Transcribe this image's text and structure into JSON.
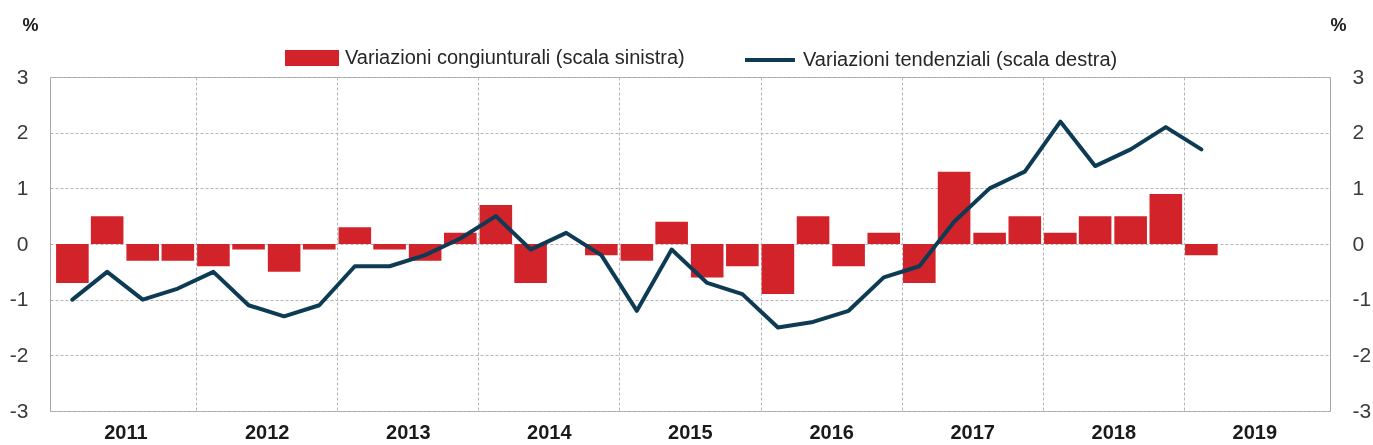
{
  "chart_data": {
    "type": "bar",
    "ylabel": "%",
    "y2label": "%",
    "x": [
      "2011-02-15",
      "2011-05-16",
      "2011-08-16",
      "2011-11-15",
      "2012-02-15",
      "2012-05-16",
      "2012-08-16",
      "2012-11-15",
      "2013-02-15",
      "2013-05-16",
      "2013-08-16",
      "2013-11-15",
      "2014-02-15",
      "2014-05-16",
      "2014-08-16",
      "2014-11-15",
      "2015-02-15",
      "2015-05-16",
      "2015-08-16",
      "2015-11-15",
      "2016-02-15",
      "2016-05-16",
      "2016-08-16",
      "2016-11-15",
      "2017-02-15",
      "2017-05-16",
      "2017-08-16",
      "2017-11-15",
      "2018-02-15",
      "2018-05-16",
      "2018-08-16",
      "2018-11-15",
      "2019-02-15"
    ],
    "xlim": [
      "2011-01-01",
      "2020-01-01"
    ],
    "xticks": [
      {
        "value": "2011-07-02",
        "label": "2011"
      },
      {
        "value": "2012-01-01",
        "label": null
      },
      {
        "value": "2012-07-02",
        "label": "2012"
      },
      {
        "value": "2013-01-01",
        "label": null
      },
      {
        "value": "2013-07-02",
        "label": "2013"
      },
      {
        "value": "2014-01-01",
        "label": null
      },
      {
        "value": "2014-07-02",
        "label": "2014"
      },
      {
        "value": "2015-01-01",
        "label": null
      },
      {
        "value": "2015-07-02",
        "label": "2015"
      },
      {
        "value": "2016-01-01",
        "label": null
      },
      {
        "value": "2016-07-02",
        "label": "2016"
      },
      {
        "value": "2017-01-01",
        "label": null
      },
      {
        "value": "2017-07-02",
        "label": "2017"
      },
      {
        "value": "2018-01-01",
        "label": null
      },
      {
        "value": "2018-07-02",
        "label": "2018"
      },
      {
        "value": "2019-01-01",
        "label": null
      },
      {
        "value": "2019-07-02",
        "label": "2019"
      }
    ],
    "ylim": [
      -3,
      3
    ],
    "yticks": [
      -3,
      -2,
      -1,
      0,
      1,
      2,
      3
    ],
    "y2lim": [
      -3,
      3
    ],
    "y2ticks": [
      -3,
      -2,
      -1,
      0,
      1,
      2,
      3
    ],
    "series": [
      {
        "name": "Variazioni congiunturali (scala sinistra)",
        "type": "bar",
        "color": "#d2232a",
        "values": [
          -0.7,
          0.5,
          -0.3,
          -0.3,
          -0.4,
          -0.1,
          -0.5,
          -0.1,
          0.3,
          -0.1,
          -0.3,
          0.2,
          0.7,
          -0.7,
          0.0,
          -0.2,
          -0.3,
          0.4,
          -0.6,
          -0.4,
          -0.9,
          0.5,
          -0.4,
          0.2,
          -0.7,
          1.3,
          0.2,
          0.5,
          0.2,
          0.5,
          0.5,
          0.9,
          -0.2
        ]
      },
      {
        "name": "Variazioni tendenziali (scala destra)",
        "type": "line",
        "axis": "y2",
        "color": "#0d3b54",
        "values": [
          -1.0,
          -0.5,
          -1.0,
          -0.8,
          -0.5,
          -1.1,
          -1.3,
          -1.1,
          -0.4,
          -0.4,
          -0.2,
          0.1,
          0.5,
          -0.1,
          0.2,
          -0.2,
          -1.2,
          -0.1,
          -0.7,
          -0.9,
          -1.5,
          -1.4,
          -1.2,
          -0.6,
          -0.4,
          0.4,
          1.0,
          1.3,
          2.2,
          1.4,
          1.7,
          2.1,
          1.7
        ]
      }
    ],
    "grid": true,
    "legend": "top"
  }
}
